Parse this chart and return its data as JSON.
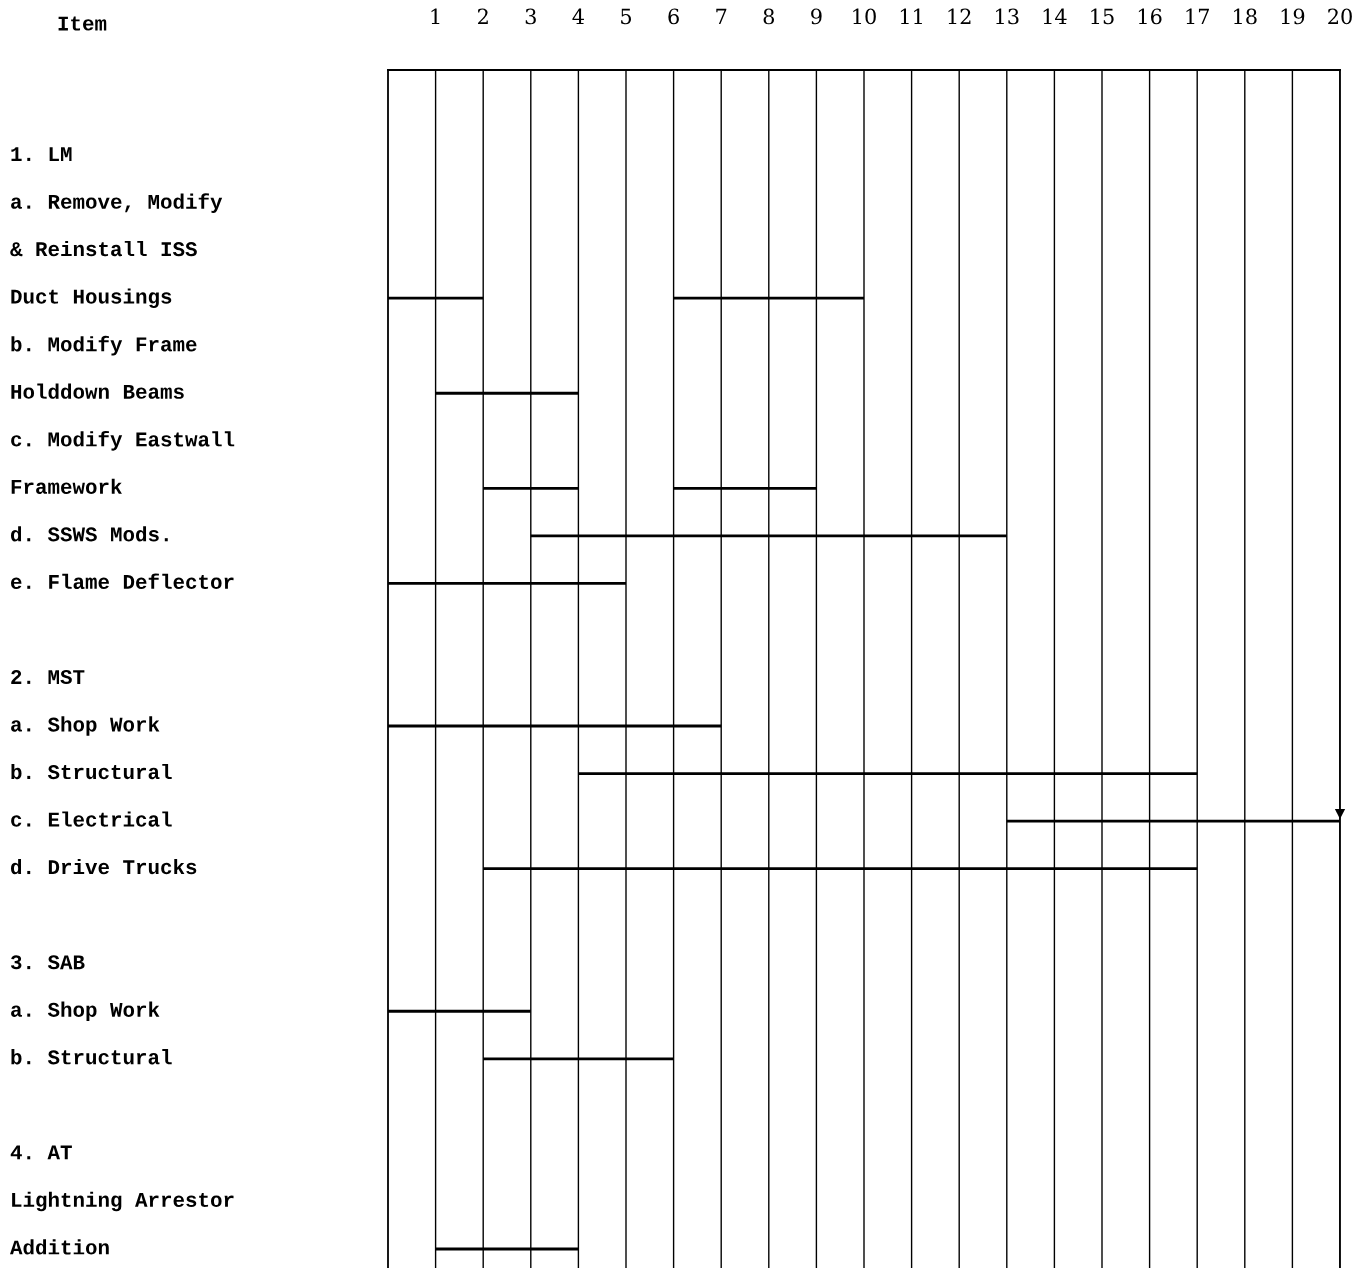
{
  "chart_data": {
    "type": "bar",
    "orientation": "horizontal",
    "ylabel": "Item",
    "categories": [
      null,
      "1. LM",
      "a. Remove, Modify",
      "& Reinstall ISS",
      "Duct Housings",
      "b. Modify Frame",
      "Holddown Beams",
      "c. Modify Eastwall",
      "Framework",
      "d. SSWS Mods.",
      "e. Flame Deflector",
      null,
      "2. MST",
      "a. Shop Work",
      "b. Structural",
      "c. Electrical",
      "d. Drive Trucks",
      null,
      "3. SAB",
      "a. Shop Work",
      "b. Structural",
      null,
      "4. AT",
      "Lightning Arrestor",
      "Addition"
    ],
    "series": [
      {
        "color": "#000000",
        "base": [
          null,
          null,
          null,
          null,
          0,
          null,
          1,
          null,
          2,
          3,
          0,
          null,
          null,
          0,
          4,
          13,
          2,
          null,
          null,
          0,
          2,
          null,
          null,
          null,
          1
        ],
        "values": [
          null,
          null,
          null,
          null,
          2,
          null,
          3,
          null,
          2,
          10,
          5,
          null,
          null,
          7,
          13,
          7,
          15,
          null,
          null,
          3,
          4,
          null,
          null,
          null,
          3
        ]
      },
      {
        "color": "#000000",
        "base": [
          null,
          null,
          null,
          null,
          6,
          null,
          null,
          null,
          6,
          null,
          null,
          null,
          null,
          null,
          null,
          null,
          null,
          null,
          null,
          null,
          null,
          null,
          null,
          null,
          null
        ],
        "values": [
          null,
          null,
          null,
          null,
          4,
          null,
          null,
          null,
          3,
          null,
          null,
          null,
          null,
          null,
          null,
          null,
          null,
          null,
          null,
          null,
          null,
          null,
          null,
          null,
          null
        ]
      }
    ],
    "xlim": [
      0,
      20
    ],
    "xticks": [
      1,
      2,
      3,
      4,
      5,
      6,
      7,
      8,
      9,
      10,
      11,
      12,
      13,
      14,
      15,
      16,
      17,
      18,
      19,
      20
    ],
    "grid": "x",
    "legend": false
  }
}
